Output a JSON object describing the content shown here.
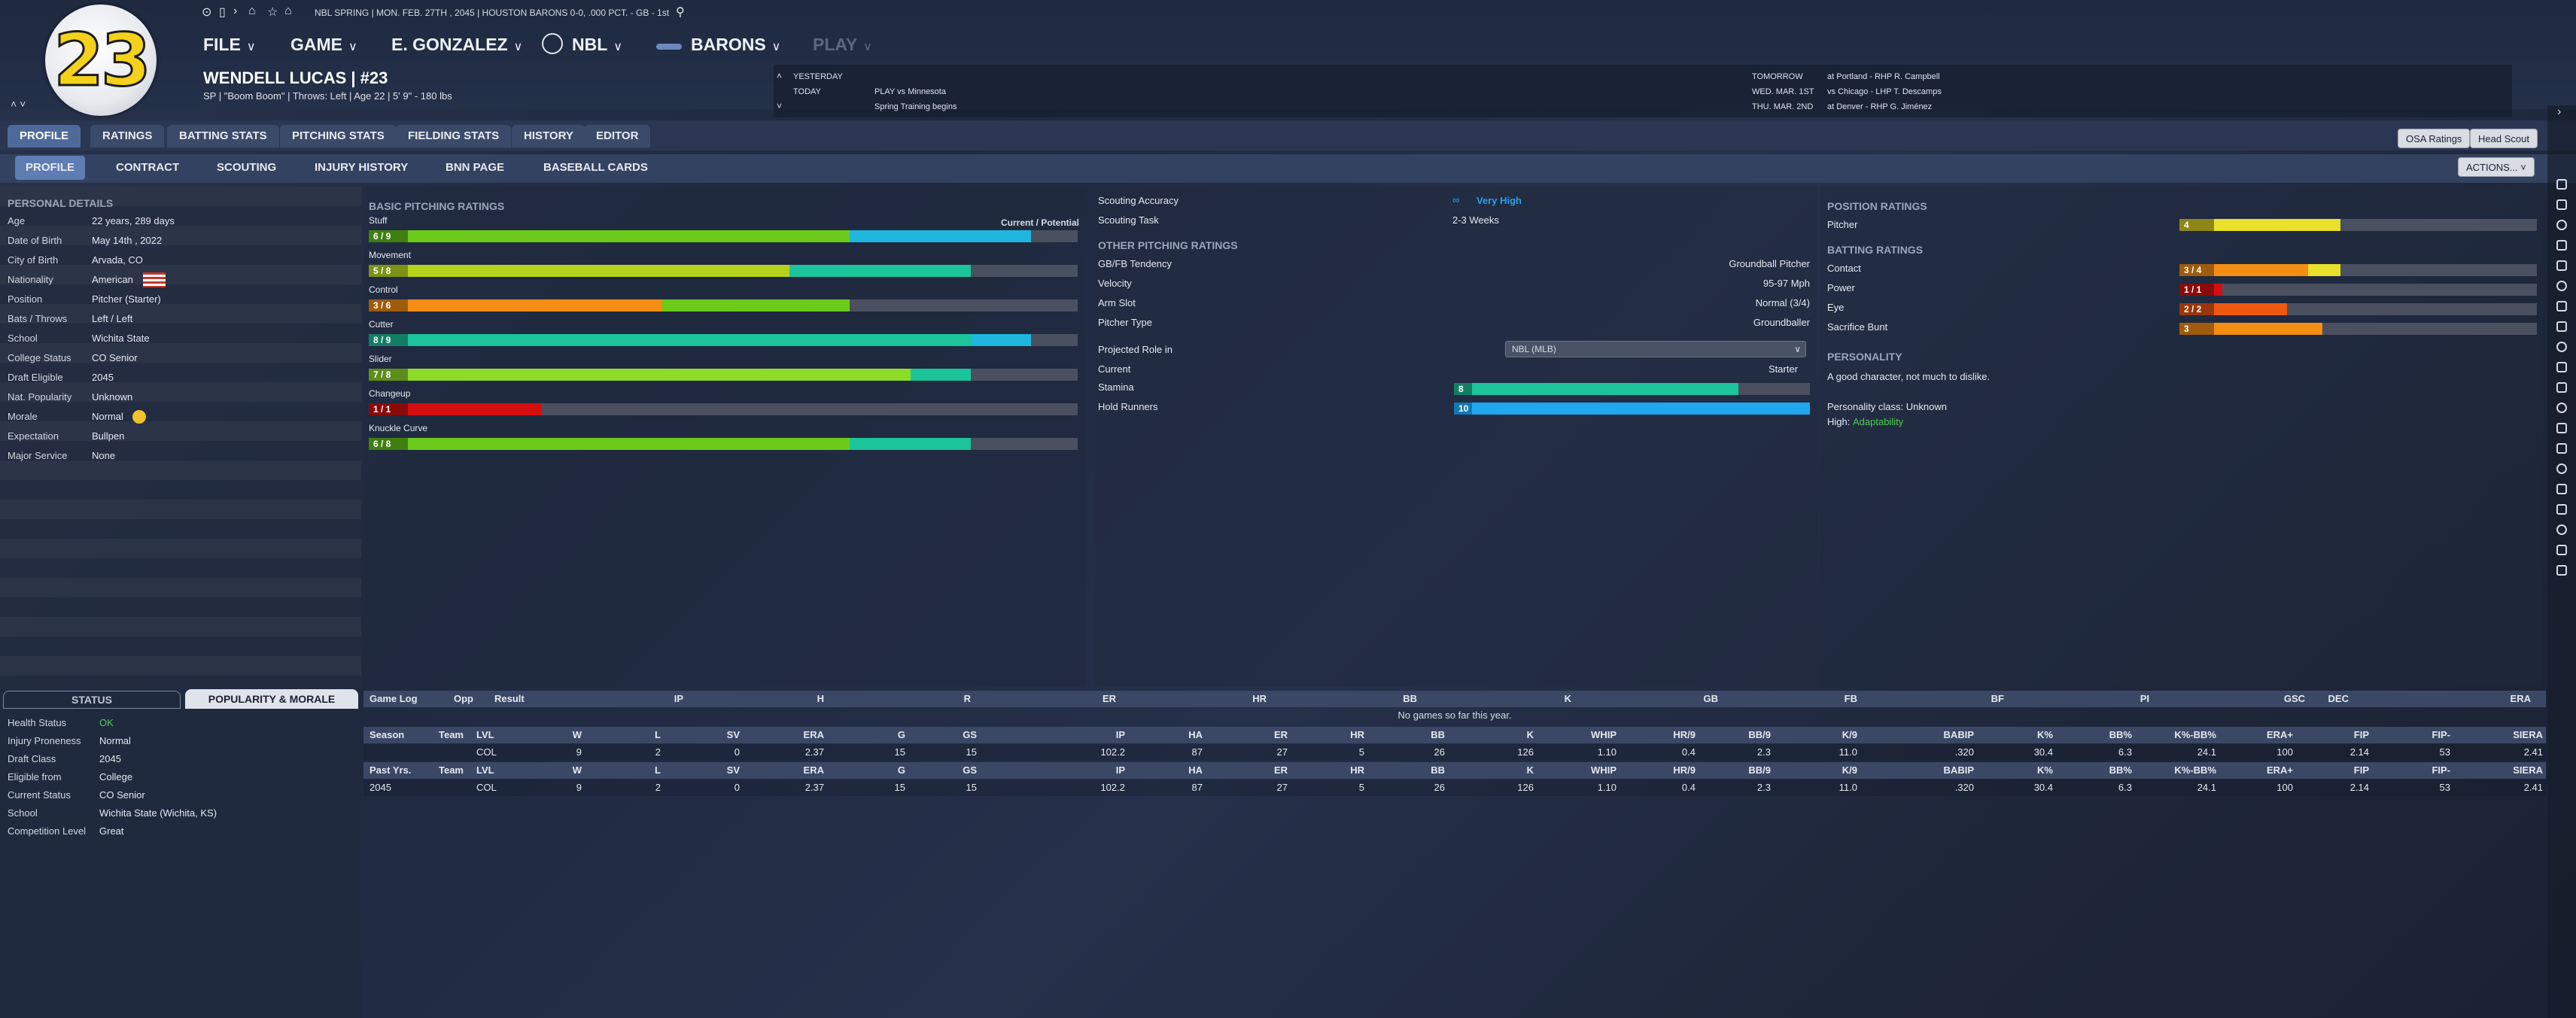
{
  "top": {
    "status": "NBL SPRING  |  MON. FEB. 27TH , 2045  |  HOUSTON BARONS   0-0, .000 PCT. - GB - 1st",
    "menus": [
      "FILE",
      "GAME",
      "E. GONZALEZ",
      "NBL",
      "BARONS",
      "PLAY"
    ]
  },
  "player": {
    "number": "23",
    "name": "WENDELL LUCAS  |  #23",
    "info": "SP | \"Boom Boom\" | Throws: Left  |  Age 22  |  5' 9\" - 180 lbs"
  },
  "schedule": {
    "yesterday_label": "YESTERDAY",
    "yesterday_val": "",
    "today_label": "TODAY",
    "today_val": "PLAY vs Minnesota",
    "today_sub": "Spring Training begins",
    "tomorrow_label": "TOMORROW",
    "tomorrow_val": "at Portland - RHP R. Campbell",
    "d2_label": "WED. MAR. 1ST",
    "d2_val": "vs Chicago - LHP T. Descamps",
    "d3_label": "THU. MAR. 2ND",
    "d3_val": "at Denver - RHP G. Jiménez"
  },
  "tabs": [
    "PROFILE",
    "RATINGS",
    "BATTING STATS",
    "PITCHING STATS",
    "FIELDING STATS",
    "HISTORY",
    "EDITOR"
  ],
  "subtabs": [
    "PROFILE",
    "CONTRACT",
    "SCOUTING",
    "INJURY HISTORY",
    "BNN PAGE",
    "BASEBALL CARDS"
  ],
  "buttons": {
    "osa": "OSA Ratings",
    "scout": "Head Scout",
    "actions": "ACTIONS..."
  },
  "personal": {
    "title": "PERSONAL DETAILS",
    "rows": [
      [
        "Age",
        "22 years, 289 days"
      ],
      [
        "Date of Birth",
        "May 14th , 2022"
      ],
      [
        "City of Birth",
        "Arvada, CO"
      ],
      [
        "Nationality",
        "American"
      ],
      [
        "Position",
        "Pitcher (Starter)"
      ],
      [
        "Bats / Throws",
        "Left / Left"
      ],
      [
        "School",
        "Wichita State"
      ],
      [
        "College Status",
        "CO Senior"
      ],
      [
        "Draft Eligible",
        "2045"
      ],
      [
        "Nat. Popularity",
        "Unknown"
      ],
      [
        "Morale",
        "Normal"
      ],
      [
        "Expectation",
        "Bullpen"
      ],
      [
        "Major Service",
        "None"
      ]
    ]
  },
  "pitching": {
    "title": "BASIC PITCHING RATINGS",
    "cur_pot": "Current / Potential",
    "pitches": [
      {
        "name": "Stuff",
        "tag": "6 / 9",
        "cur": 0.66,
        "pot": 0.93,
        "ccol": "#6ccb1a",
        "pcol": "#1fb7dd",
        "tcol": "#3f7f10"
      },
      {
        "name": "Movement",
        "tag": "5 / 8",
        "cur": 0.57,
        "pot": 0.84,
        "ccol": "#b6d21d",
        "pcol": "#1bc49a",
        "tcol": "#7e9114"
      },
      {
        "name": "Control",
        "tag": "3 / 6",
        "cur": 0.38,
        "pot": 0.66,
        "ccol": "#f48d13",
        "pcol": "#6ccb1a",
        "tcol": "#9f5c0c"
      },
      {
        "name": "Cutter",
        "tag": "8 / 9",
        "cur": 0.84,
        "pot": 0.93,
        "ccol": "#1bc49a",
        "pcol": "#1fb7dd",
        "tcol": "#137e64"
      },
      {
        "name": "Slider",
        "tag": "7 / 8",
        "cur": 0.75,
        "pot": 0.84,
        "ccol": "#8edc2a",
        "pcol": "#1bc49a",
        "tcol": "#5c8e1b"
      },
      {
        "name": "Changeup",
        "tag": "1 / 1",
        "cur": 0.2,
        "pot": 0.2,
        "ccol": "#d40f0f",
        "pcol": "#d40f0f",
        "tcol": "#8a0a0a"
      },
      {
        "name": "Knuckle Curve",
        "tag": "6 / 8",
        "cur": 0.66,
        "pot": 0.84,
        "ccol": "#6ccb1a",
        "pcol": "#1bc49a",
        "tcol": "#3f7f10"
      }
    ]
  },
  "scouting": {
    "acc_label": "Scouting Accuracy",
    "acc_val": "Very High",
    "task_label": "Scouting Task",
    "task_val": "2-3 Weeks"
  },
  "other": {
    "title": "OTHER PITCHING RATINGS",
    "rows": [
      [
        "GB/FB Tendency",
        "Groundball Pitcher"
      ],
      [
        "Velocity",
        "95-97 Mph"
      ],
      [
        "Arm Slot",
        "Normal (3/4)"
      ],
      [
        "Pitcher Type",
        "Groundballer"
      ]
    ],
    "proj_label": "Projected Role in",
    "proj_select": "NBL (MLB)",
    "current_label": "Current",
    "current_val": "Starter",
    "stamina_label": "Stamina",
    "stamina_tag": "8",
    "stamina": 0.8,
    "hold_label": "Hold Runners",
    "hold_tag": "10",
    "hold": 1.0
  },
  "position": {
    "title": "POSITION RATINGS",
    "pitcher_label": "Pitcher",
    "pitcher_tag": "4",
    "pitcher": 0.45
  },
  "batting": {
    "title": "BATTING RATINGS",
    "rows": [
      {
        "name": "Contact",
        "tag": "3 / 4",
        "cur": 0.36,
        "pot": 0.45,
        "ccol": "#f48d13",
        "pcol": "#e8e02a",
        "tcol": "#9f5c0c"
      },
      {
        "name": "Power",
        "tag": "1 / 1",
        "cur": 0.12,
        "pot": 0.12,
        "ccol": "#d40f0f",
        "pcol": "#d40f0f",
        "tcol": "#8a0a0a"
      },
      {
        "name": "Eye",
        "tag": "2 / 2",
        "cur": 0.3,
        "pot": 0.3,
        "ccol": "#f0570f",
        "pcol": "#f0570f",
        "tcol": "#99360a"
      },
      {
        "name": "Sacrifice Bunt",
        "tag": "3",
        "cur": 0.4,
        "pot": 0.4,
        "ccol": "#f48d13",
        "pcol": "#f48d13",
        "tcol": "#9f5c0c"
      }
    ]
  },
  "personality": {
    "title": "PERSONALITY",
    "desc": "A good character, not much to dislike.",
    "cls": "Personality class: Unknown",
    "high_label": "High:",
    "high_val": "Adaptability"
  },
  "status": {
    "tab1": "STATUS",
    "tab2": "POPULARITY & MORALE",
    "rows": [
      [
        "Health Status",
        "OK"
      ],
      [
        "Injury Proneness",
        "Normal"
      ],
      [
        "Draft Class",
        "2045"
      ],
      [
        "Eligible from",
        "College"
      ],
      [
        "Current Status",
        "CO Senior"
      ],
      [
        "School",
        "Wichita State (Wichita, KS)"
      ],
      [
        "Competition Level",
        "Great"
      ]
    ]
  },
  "gamelog": {
    "headers": [
      "Game Log",
      "Opp",
      "Result",
      "IP",
      "H",
      "R",
      "ER",
      "HR",
      "BB",
      "K",
      "GB",
      "FB",
      "BF",
      "PI",
      "GSC",
      "DEC",
      "ERA"
    ],
    "empty": "No games so far this year."
  },
  "stats": {
    "h1": [
      "Season",
      "Team",
      "LVL",
      "W",
      "L",
      "SV",
      "ERA",
      "G",
      "GS",
      "IP",
      "HA",
      "ER",
      "HR",
      "BB",
      "K",
      "WHIP",
      "HR/9",
      "BB/9",
      "K/9",
      "BABIP",
      "K%",
      "BB%",
      "K%-BB%",
      "ERA+",
      "FIP",
      "FIP-",
      "SIERA"
    ],
    "r1": [
      "",
      "",
      "COL",
      "9",
      "2",
      "0",
      "2.37",
      "15",
      "15",
      "102.2",
      "87",
      "27",
      "5",
      "26",
      "126",
      "1.10",
      "0.4",
      "2.3",
      "11.0",
      ".320",
      "30.4",
      "6.3",
      "24.1",
      "100",
      "2.14",
      "53",
      "2.41"
    ],
    "h2": [
      "Past Yrs.",
      "Team",
      "LVL",
      "W",
      "L",
      "SV",
      "ERA",
      "G",
      "GS",
      "IP",
      "HA",
      "ER",
      "HR",
      "BB",
      "K",
      "WHIP",
      "HR/9",
      "BB/9",
      "K/9",
      "BABIP",
      "K%",
      "BB%",
      "K%-BB%",
      "ERA+",
      "FIP",
      "FIP-",
      "SIERA"
    ],
    "r2": [
      "2045",
      "",
      "COL",
      "9",
      "2",
      "0",
      "2.37",
      "15",
      "15",
      "102.2",
      "87",
      "27",
      "5",
      "26",
      "126",
      "1.10",
      "0.4",
      "2.3",
      "11.0",
      ".320",
      "30.4",
      "6.3",
      "24.1",
      "100",
      "2.14",
      "53",
      "2.41"
    ]
  }
}
